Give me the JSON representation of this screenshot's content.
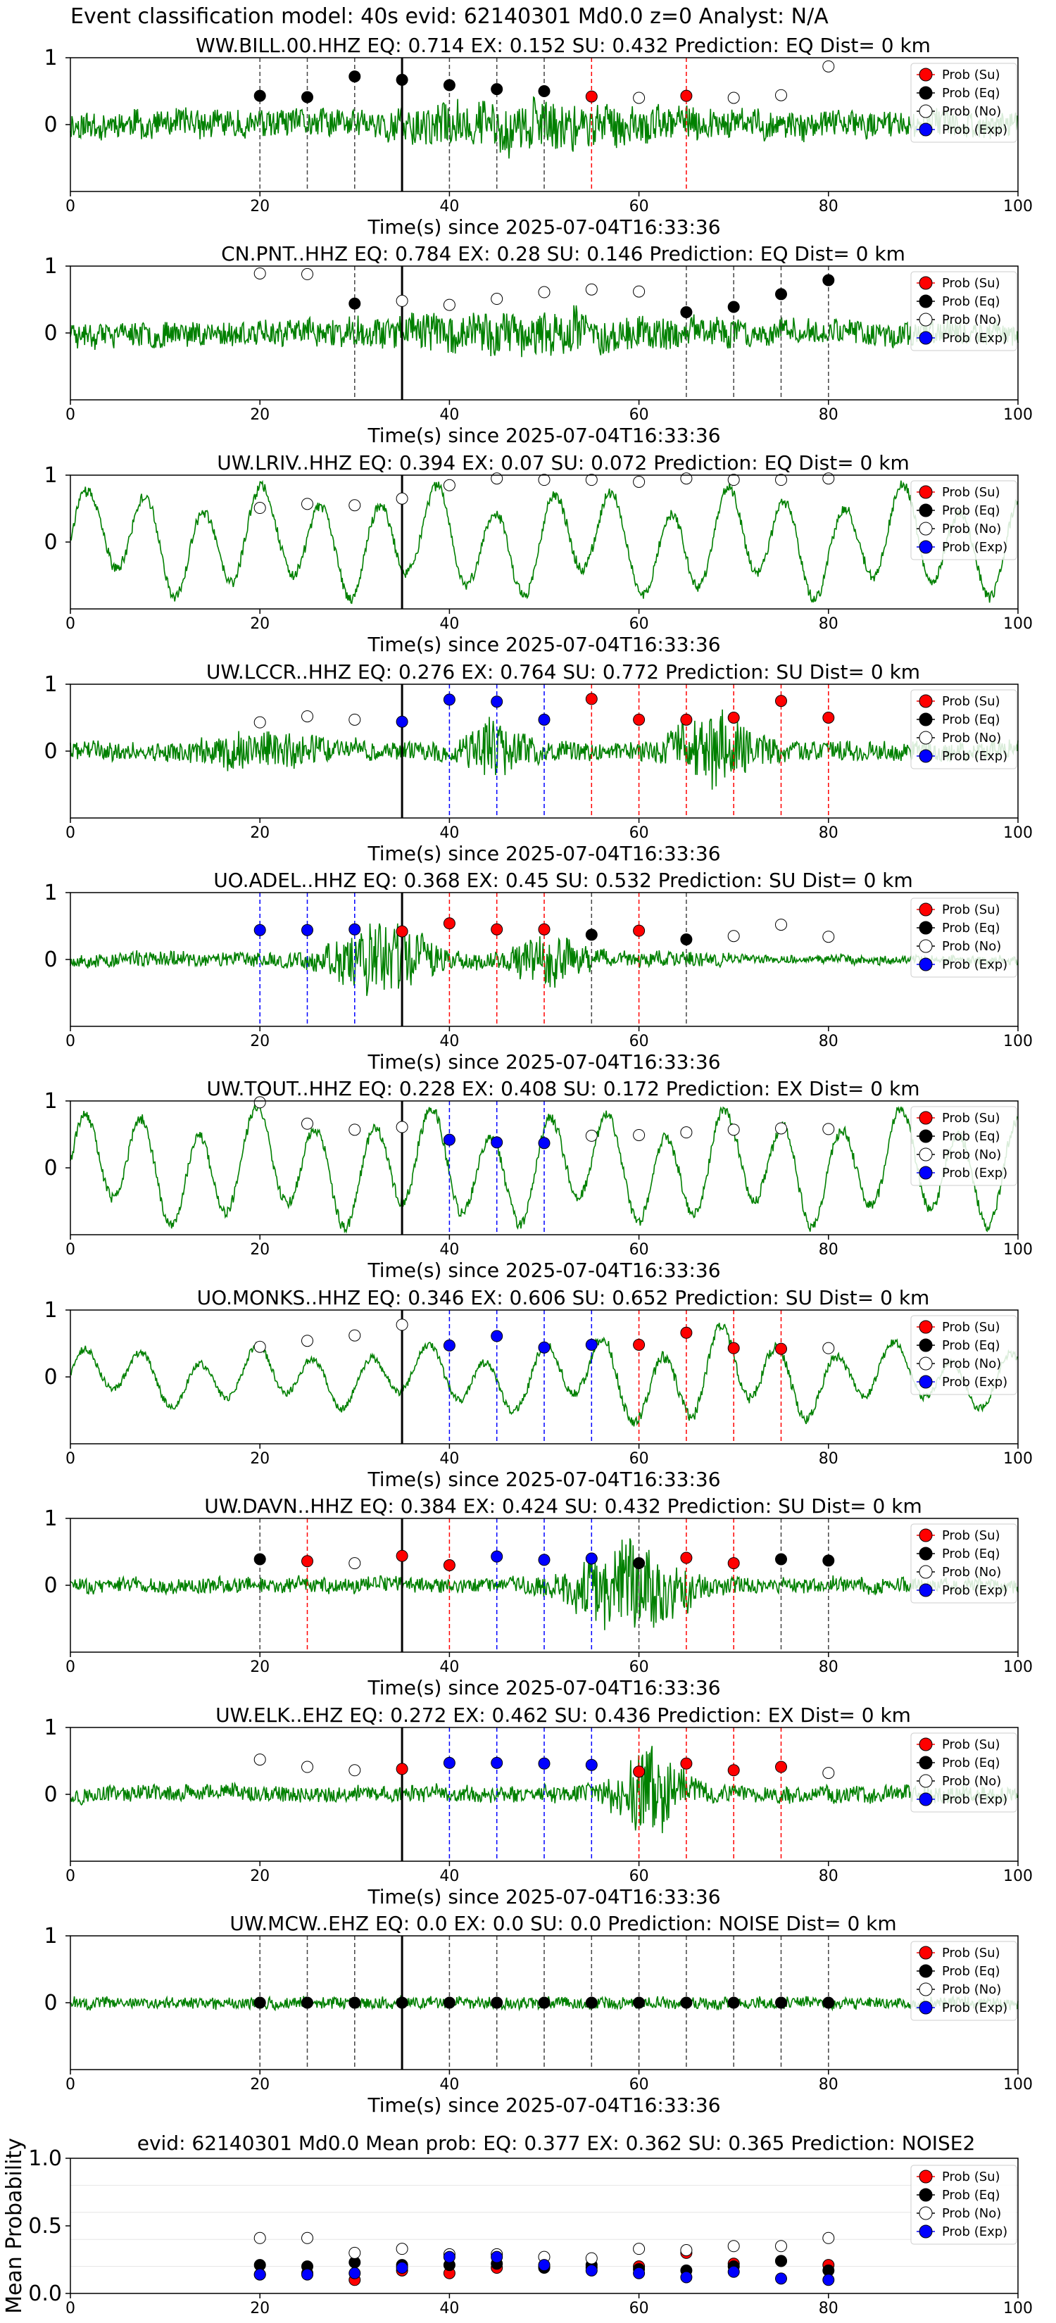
{
  "figure_title": "Event classification model: 40s evid: 62140301 Md0.0 z=0 Analyst: N/A",
  "legend": [
    "Prob (Su)",
    "Prob (Eq)",
    "Prob (No)",
    "Prob (Exp)"
  ],
  "colors": {
    "su": "#ff0000",
    "eq": "#000000",
    "no": "#ffffff",
    "exp": "#0000ff",
    "trace": "#008000"
  },
  "x_axis_label": "Time(s) since 2025-07-04T16:33:36",
  "chart_data": [
    {
      "type": "line",
      "title": "WW.BILL.00.HHZ   EQ: 0.714  EX: 0.152  SU: 0.432   Prediction: EQ    Dist= 0 km",
      "xlabel": "Time(s) since 2025-07-04T16:33:36",
      "xlim": [
        0,
        100
      ],
      "ylim": [
        -1,
        1
      ],
      "yticks": [
        0,
        1
      ],
      "xticks": [
        0,
        20,
        40,
        60,
        80,
        100
      ],
      "pick_time": 35,
      "trace": {
        "seed": 11,
        "envelope": "busy",
        "amp": 0.5
      },
      "points": [
        {
          "t": 20,
          "p": 0.43,
          "cls": "eq"
        },
        {
          "t": 25,
          "p": 0.41,
          "cls": "eq"
        },
        {
          "t": 30,
          "p": 0.72,
          "cls": "eq"
        },
        {
          "t": 35,
          "p": 0.67,
          "cls": "eq"
        },
        {
          "t": 40,
          "p": 0.59,
          "cls": "eq"
        },
        {
          "t": 45,
          "p": 0.53,
          "cls": "eq"
        },
        {
          "t": 50,
          "p": 0.5,
          "cls": "eq"
        },
        {
          "t": 55,
          "p": 0.42,
          "cls": "su"
        },
        {
          "t": 60,
          "p": 0.4,
          "cls": "no"
        },
        {
          "t": 65,
          "p": 0.43,
          "cls": "su"
        },
        {
          "t": 70,
          "p": 0.4,
          "cls": "no"
        },
        {
          "t": 75,
          "p": 0.44,
          "cls": "no"
        },
        {
          "t": 80,
          "p": 0.87,
          "cls": "no"
        }
      ]
    },
    {
      "type": "line",
      "title": "CN.PNT..HHZ   EQ: 0.784  EX: 0.28  SU: 0.146   Prediction: EQ    Dist= 0 km",
      "xlabel": "Time(s) since 2025-07-04T16:33:36",
      "xlim": [
        0,
        100
      ],
      "ylim": [
        -1,
        1
      ],
      "yticks": [
        0,
        1
      ],
      "xticks": [
        0,
        20,
        40,
        60,
        80,
        100
      ],
      "pick_time": 35,
      "trace": {
        "seed": 23,
        "envelope": "busy",
        "amp": 0.45
      },
      "points": [
        {
          "t": 20,
          "p": 0.89,
          "cls": "no"
        },
        {
          "t": 25,
          "p": 0.88,
          "cls": "no"
        },
        {
          "t": 30,
          "p": 0.44,
          "cls": "eq"
        },
        {
          "t": 35,
          "p": 0.48,
          "cls": "no"
        },
        {
          "t": 40,
          "p": 0.42,
          "cls": "no"
        },
        {
          "t": 45,
          "p": 0.51,
          "cls": "no"
        },
        {
          "t": 50,
          "p": 0.61,
          "cls": "no"
        },
        {
          "t": 55,
          "p": 0.65,
          "cls": "no"
        },
        {
          "t": 60,
          "p": 0.62,
          "cls": "no"
        },
        {
          "t": 65,
          "p": 0.31,
          "cls": "eq"
        },
        {
          "t": 70,
          "p": 0.39,
          "cls": "eq"
        },
        {
          "t": 75,
          "p": 0.58,
          "cls": "eq"
        },
        {
          "t": 80,
          "p": 0.79,
          "cls": "eq"
        }
      ]
    },
    {
      "type": "line",
      "title": "UW.LRIV..HHZ   EQ: 0.394  EX: 0.07  SU: 0.072   Prediction: EQ    Dist= 0 km",
      "xlabel": "Time(s) since 2025-07-04T16:33:36",
      "xlim": [
        0,
        100
      ],
      "ylim": [
        -1,
        1
      ],
      "yticks": [
        0,
        1
      ],
      "xticks": [
        0,
        20,
        40,
        60,
        80,
        100
      ],
      "pick_time": 35,
      "trace": {
        "seed": 37,
        "envelope": "wave",
        "amp": 0.7
      },
      "points": [
        {
          "t": 20,
          "p": 0.51,
          "cls": "no"
        },
        {
          "t": 25,
          "p": 0.57,
          "cls": "no"
        },
        {
          "t": 30,
          "p": 0.55,
          "cls": "no"
        },
        {
          "t": 35,
          "p": 0.65,
          "cls": "no"
        },
        {
          "t": 40,
          "p": 0.85,
          "cls": "no"
        },
        {
          "t": 45,
          "p": 0.95,
          "cls": "no"
        },
        {
          "t": 50,
          "p": 0.93,
          "cls": "no"
        },
        {
          "t": 55,
          "p": 0.93,
          "cls": "no"
        },
        {
          "t": 60,
          "p": 0.9,
          "cls": "no"
        },
        {
          "t": 65,
          "p": 0.95,
          "cls": "no"
        },
        {
          "t": 70,
          "p": 0.93,
          "cls": "no"
        },
        {
          "t": 75,
          "p": 0.93,
          "cls": "no"
        },
        {
          "t": 80,
          "p": 0.95,
          "cls": "no"
        }
      ]
    },
    {
      "type": "line",
      "title": "UW.LCCR..HHZ   EQ: 0.276  EX: 0.764  SU: 0.772   Prediction: SU    Dist= 0 km",
      "xlabel": "Time(s) since 2025-07-04T16:33:36",
      "xlim": [
        0,
        100
      ],
      "ylim": [
        -1,
        1
      ],
      "yticks": [
        0,
        1
      ],
      "xticks": [
        0,
        20,
        40,
        60,
        80,
        100
      ],
      "pick_time": 35,
      "trace": {
        "seed": 41,
        "envelope": "burst_mid",
        "amp": 0.55
      },
      "points": [
        {
          "t": 20,
          "p": 0.43,
          "cls": "no"
        },
        {
          "t": 25,
          "p": 0.52,
          "cls": "no"
        },
        {
          "t": 30,
          "p": 0.47,
          "cls": "no"
        },
        {
          "t": 35,
          "p": 0.44,
          "cls": "exp"
        },
        {
          "t": 40,
          "p": 0.77,
          "cls": "exp"
        },
        {
          "t": 45,
          "p": 0.74,
          "cls": "exp"
        },
        {
          "t": 50,
          "p": 0.47,
          "cls": "exp"
        },
        {
          "t": 55,
          "p": 0.78,
          "cls": "su"
        },
        {
          "t": 60,
          "p": 0.47,
          "cls": "su"
        },
        {
          "t": 65,
          "p": 0.47,
          "cls": "su"
        },
        {
          "t": 70,
          "p": 0.5,
          "cls": "su"
        },
        {
          "t": 75,
          "p": 0.75,
          "cls": "su"
        },
        {
          "t": 80,
          "p": 0.5,
          "cls": "su"
        }
      ]
    },
    {
      "type": "line",
      "title": "UO.ADEL..HHZ   EQ: 0.368  EX: 0.45  SU: 0.532   Prediction: SU    Dist= 0 km",
      "xlabel": "Time(s) since 2025-07-04T16:33:36",
      "xlim": [
        0,
        100
      ],
      "ylim": [
        -1,
        1
      ],
      "yticks": [
        0,
        1
      ],
      "xticks": [
        0,
        20,
        40,
        60,
        80,
        100
      ],
      "pick_time": 35,
      "trace": {
        "seed": 53,
        "envelope": "burst_early",
        "amp": 0.6
      },
      "points": [
        {
          "t": 20,
          "p": 0.44,
          "cls": "exp"
        },
        {
          "t": 25,
          "p": 0.44,
          "cls": "exp"
        },
        {
          "t": 30,
          "p": 0.45,
          "cls": "exp"
        },
        {
          "t": 35,
          "p": 0.42,
          "cls": "su"
        },
        {
          "t": 40,
          "p": 0.54,
          "cls": "su"
        },
        {
          "t": 45,
          "p": 0.45,
          "cls": "su"
        },
        {
          "t": 50,
          "p": 0.45,
          "cls": "su"
        },
        {
          "t": 55,
          "p": 0.37,
          "cls": "eq"
        },
        {
          "t": 60,
          "p": 0.43,
          "cls": "su"
        },
        {
          "t": 65,
          "p": 0.3,
          "cls": "eq"
        },
        {
          "t": 70,
          "p": 0.35,
          "cls": "no"
        },
        {
          "t": 75,
          "p": 0.52,
          "cls": "no"
        },
        {
          "t": 80,
          "p": 0.34,
          "cls": "no"
        }
      ]
    },
    {
      "type": "line",
      "title": "UW.TOUT..HHZ   EQ: 0.228  EX: 0.408  SU: 0.172   Prediction: EX    Dist= 0 km",
      "xlabel": "Time(s) since 2025-07-04T16:33:36",
      "xlim": [
        0,
        100
      ],
      "ylim": [
        -1,
        1
      ],
      "yticks": [
        0,
        1
      ],
      "xticks": [
        0,
        20,
        40,
        60,
        80,
        100
      ],
      "pick_time": 35,
      "trace": {
        "seed": 61,
        "envelope": "wave",
        "amp": 0.75
      },
      "points": [
        {
          "t": 20,
          "p": 0.98,
          "cls": "no"
        },
        {
          "t": 25,
          "p": 0.66,
          "cls": "no"
        },
        {
          "t": 30,
          "p": 0.57,
          "cls": "no"
        },
        {
          "t": 35,
          "p": 0.61,
          "cls": "no"
        },
        {
          "t": 40,
          "p": 0.42,
          "cls": "exp"
        },
        {
          "t": 45,
          "p": 0.38,
          "cls": "exp"
        },
        {
          "t": 50,
          "p": 0.37,
          "cls": "exp"
        },
        {
          "t": 55,
          "p": 0.48,
          "cls": "no"
        },
        {
          "t": 60,
          "p": 0.49,
          "cls": "no"
        },
        {
          "t": 65,
          "p": 0.53,
          "cls": "no"
        },
        {
          "t": 70,
          "p": 0.57,
          "cls": "no"
        },
        {
          "t": 75,
          "p": 0.59,
          "cls": "no"
        },
        {
          "t": 80,
          "p": 0.58,
          "cls": "no"
        }
      ]
    },
    {
      "type": "line",
      "title": "UO.MONKS..HHZ   EQ: 0.346  EX: 0.606  SU: 0.652   Prediction: SU    Dist= 0 km",
      "xlabel": "Time(s) since 2025-07-04T16:33:36",
      "xlim": [
        0,
        100
      ],
      "ylim": [
        -1,
        1
      ],
      "yticks": [
        0,
        1
      ],
      "xticks": [
        0,
        20,
        40,
        60,
        80,
        100
      ],
      "pick_time": 35,
      "trace": {
        "seed": 71,
        "envelope": "wave_mid",
        "amp": 0.55
      },
      "points": [
        {
          "t": 20,
          "p": 0.45,
          "cls": "no"
        },
        {
          "t": 25,
          "p": 0.54,
          "cls": "no"
        },
        {
          "t": 30,
          "p": 0.62,
          "cls": "no"
        },
        {
          "t": 35,
          "p": 0.78,
          "cls": "no"
        },
        {
          "t": 40,
          "p": 0.47,
          "cls": "exp"
        },
        {
          "t": 45,
          "p": 0.61,
          "cls": "exp"
        },
        {
          "t": 50,
          "p": 0.44,
          "cls": "exp"
        },
        {
          "t": 55,
          "p": 0.48,
          "cls": "exp"
        },
        {
          "t": 60,
          "p": 0.48,
          "cls": "su"
        },
        {
          "t": 65,
          "p": 0.66,
          "cls": "su"
        },
        {
          "t": 70,
          "p": 0.43,
          "cls": "su"
        },
        {
          "t": 75,
          "p": 0.42,
          "cls": "su"
        },
        {
          "t": 80,
          "p": 0.43,
          "cls": "no"
        }
      ]
    },
    {
      "type": "line",
      "title": "UW.DAVN..HHZ   EQ: 0.384  EX: 0.424  SU: 0.432   Prediction: SU    Dist= 0 km",
      "xlabel": "Time(s) since 2025-07-04T16:33:36",
      "xlim": [
        0,
        100
      ],
      "ylim": [
        -1,
        1
      ],
      "yticks": [
        0,
        1
      ],
      "xticks": [
        0,
        20,
        40,
        60,
        80,
        100
      ],
      "pick_time": 35,
      "trace": {
        "seed": 83,
        "envelope": "burst_late",
        "amp": 0.6
      },
      "points": [
        {
          "t": 20,
          "p": 0.39,
          "cls": "eq"
        },
        {
          "t": 25,
          "p": 0.36,
          "cls": "su"
        },
        {
          "t": 30,
          "p": 0.33,
          "cls": "no"
        },
        {
          "t": 35,
          "p": 0.44,
          "cls": "su"
        },
        {
          "t": 40,
          "p": 0.3,
          "cls": "su"
        },
        {
          "t": 45,
          "p": 0.43,
          "cls": "exp"
        },
        {
          "t": 50,
          "p": 0.38,
          "cls": "exp"
        },
        {
          "t": 55,
          "p": 0.4,
          "cls": "exp"
        },
        {
          "t": 60,
          "p": 0.33,
          "cls": "eq"
        },
        {
          "t": 65,
          "p": 0.41,
          "cls": "su"
        },
        {
          "t": 70,
          "p": 0.33,
          "cls": "su"
        },
        {
          "t": 75,
          "p": 0.39,
          "cls": "eq"
        },
        {
          "t": 80,
          "p": 0.37,
          "cls": "eq"
        }
      ]
    },
    {
      "type": "line",
      "title": "UW.ELK..EHZ   EQ: 0.272  EX: 0.462  SU: 0.436   Prediction: EX    Dist= 0 km",
      "xlabel": "Time(s) since 2025-07-04T16:33:36",
      "xlim": [
        0,
        100
      ],
      "ylim": [
        -1,
        1
      ],
      "yticks": [
        0,
        1
      ],
      "xticks": [
        0,
        20,
        40,
        60,
        80,
        100
      ],
      "pick_time": 35,
      "trace": {
        "seed": 97,
        "envelope": "burst_late2",
        "amp": 0.55
      },
      "points": [
        {
          "t": 20,
          "p": 0.52,
          "cls": "no"
        },
        {
          "t": 25,
          "p": 0.41,
          "cls": "no"
        },
        {
          "t": 30,
          "p": 0.36,
          "cls": "no"
        },
        {
          "t": 35,
          "p": 0.38,
          "cls": "su"
        },
        {
          "t": 40,
          "p": 0.47,
          "cls": "exp"
        },
        {
          "t": 45,
          "p": 0.47,
          "cls": "exp"
        },
        {
          "t": 50,
          "p": 0.46,
          "cls": "exp"
        },
        {
          "t": 55,
          "p": 0.44,
          "cls": "exp"
        },
        {
          "t": 60,
          "p": 0.34,
          "cls": "su"
        },
        {
          "t": 65,
          "p": 0.46,
          "cls": "su"
        },
        {
          "t": 70,
          "p": 0.36,
          "cls": "su"
        },
        {
          "t": 75,
          "p": 0.41,
          "cls": "su"
        },
        {
          "t": 80,
          "p": 0.32,
          "cls": "no"
        }
      ]
    },
    {
      "type": "line",
      "title": "UW.MCW..EHZ   EQ: 0.0  EX: 0.0  SU: 0.0   Prediction: NOISE    Dist= 0 km",
      "xlabel": "Time(s) since 2025-07-04T16:33:36",
      "xlim": [
        0,
        100
      ],
      "ylim": [
        -1,
        1
      ],
      "yticks": [
        0,
        1
      ],
      "xticks": [
        0,
        20,
        40,
        60,
        80,
        100
      ],
      "pick_time": 35,
      "trace": {
        "seed": 101,
        "envelope": "flat",
        "amp": 0.12
      },
      "points": [
        {
          "t": 20,
          "p": 0.0,
          "cls": "eq"
        },
        {
          "t": 25,
          "p": 0.0,
          "cls": "eq"
        },
        {
          "t": 30,
          "p": 0.0,
          "cls": "eq"
        },
        {
          "t": 35,
          "p": 0.0,
          "cls": "eq"
        },
        {
          "t": 40,
          "p": 0.0,
          "cls": "eq"
        },
        {
          "t": 45,
          "p": 0.0,
          "cls": "eq"
        },
        {
          "t": 50,
          "p": 0.0,
          "cls": "eq"
        },
        {
          "t": 55,
          "p": 0.0,
          "cls": "eq"
        },
        {
          "t": 60,
          "p": 0.0,
          "cls": "eq"
        },
        {
          "t": 65,
          "p": 0.0,
          "cls": "eq"
        },
        {
          "t": 70,
          "p": 0.0,
          "cls": "eq"
        },
        {
          "t": 75,
          "p": 0.0,
          "cls": "eq"
        },
        {
          "t": 80,
          "p": 0.0,
          "cls": "eq"
        }
      ]
    },
    {
      "type": "scatter",
      "title": "evid: 62140301  Md0.0   Mean prob:   EQ: 0.377  EX: 0.362  SU: 0.365   Prediction: NOISE2",
      "xlabel": "",
      "ylabel": "Mean Probability",
      "xlim": [
        0,
        100
      ],
      "ylim": [
        0,
        1
      ],
      "yticks": [
        0.0,
        0.5,
        1.0
      ],
      "xticks": [
        0,
        20,
        40,
        60,
        80,
        100
      ],
      "x": [
        20,
        25,
        30,
        35,
        40,
        45,
        50,
        55,
        60,
        65,
        70,
        75,
        80
      ],
      "series": [
        {
          "name": "Prob (Su)",
          "cls": "su",
          "values": [
            0.14,
            0.15,
            0.1,
            0.17,
            0.15,
            0.19,
            0.2,
            0.19,
            0.2,
            0.3,
            0.22,
            0.24,
            0.21
          ]
        },
        {
          "name": "Prob (Eq)",
          "cls": "eq",
          "values": [
            0.21,
            0.2,
            0.23,
            0.21,
            0.21,
            0.22,
            0.19,
            0.21,
            0.18,
            0.17,
            0.2,
            0.24,
            0.17
          ]
        },
        {
          "name": "Prob (No)",
          "cls": "no",
          "values": [
            0.41,
            0.41,
            0.3,
            0.33,
            0.29,
            0.29,
            0.27,
            0.26,
            0.33,
            0.32,
            0.35,
            0.35,
            0.41
          ]
        },
        {
          "name": "Prob (Exp)",
          "cls": "exp",
          "values": [
            0.14,
            0.14,
            0.15,
            0.19,
            0.27,
            0.27,
            0.21,
            0.17,
            0.15,
            0.12,
            0.16,
            0.11,
            0.1
          ]
        }
      ]
    }
  ]
}
